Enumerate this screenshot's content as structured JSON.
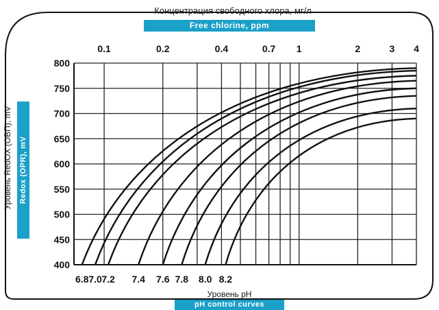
{
  "chart_data": {
    "type": "line",
    "top_axis_title_ru": "Концентрация свободного хлора, мг/л",
    "top_axis_title_en": "Free chlorine, ppm",
    "left_axis_title_ru": "Уровень RedOX (ОВП), mV",
    "left_axis_title_en": "Redox (OPR), mV",
    "bottom_axis_title_ru": "Уровень pH",
    "bottom_axis_title_en": "pH control curves",
    "y_ticks": [
      400,
      450,
      500,
      550,
      600,
      650,
      700,
      750,
      800
    ],
    "ylim": [
      400,
      800
    ],
    "chlorine_ticks": [
      "0.1",
      "0.2",
      "0.4",
      "0.7",
      "1",
      "2",
      "3",
      "4"
    ],
    "chlorine_scale": "log",
    "chlorine_range": [
      0.07,
      4
    ],
    "ph_labels": [
      "6.8",
      "7.0",
      "7.2",
      "7.4",
      "7.6",
      "7.8",
      "8.0",
      "8.2"
    ],
    "grid": true,
    "series": [
      {
        "ph": "6.8",
        "start": 0.077,
        "top": 790
      },
      {
        "ph": "7.0",
        "start": 0.09,
        "top": 785
      },
      {
        "ph": "7.2",
        "start": 0.105,
        "top": 775
      },
      {
        "ph": "7.4",
        "start": 0.15,
        "top": 765
      },
      {
        "ph": "7.6",
        "start": 0.2,
        "top": 750
      },
      {
        "ph": "7.8",
        "start": 0.25,
        "top": 735
      },
      {
        "ph": "8.0",
        "start": 0.33,
        "top": 710
      },
      {
        "ph": "8.2",
        "start": 0.42,
        "top": 690
      }
    ],
    "curve_bottom_mv": 400,
    "curve_end_chlorine": 4
  },
  "colors": {
    "accent": "#1ba0c8",
    "ink": "#111111"
  }
}
